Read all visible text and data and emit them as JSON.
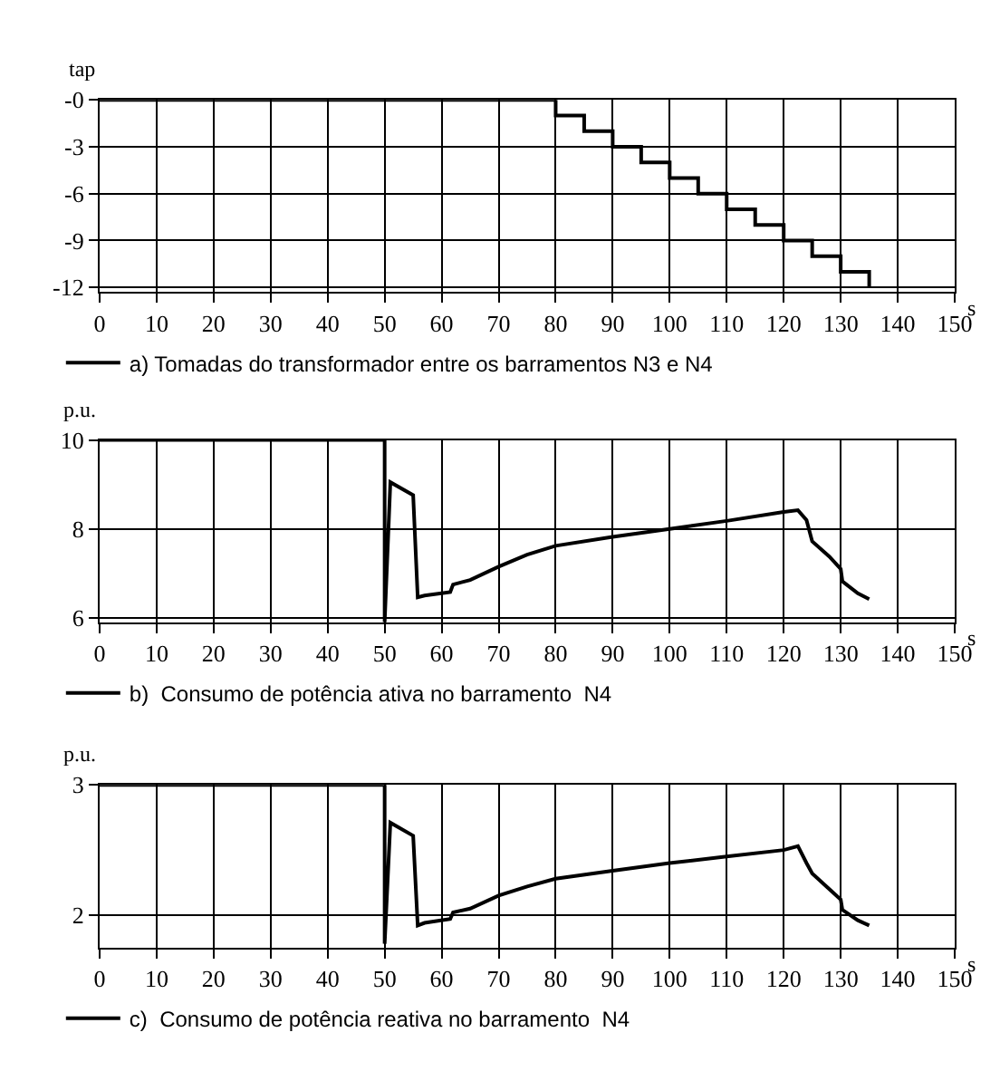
{
  "chart_data": [
    {
      "type": "step",
      "xlabel": "s",
      "ylabel": "tap",
      "xlim": [
        0,
        150
      ],
      "xticks": [
        0,
        10,
        20,
        30,
        40,
        50,
        60,
        70,
        80,
        90,
        100,
        110,
        120,
        130,
        140,
        150
      ],
      "ylim": [
        -12.3,
        0
      ],
      "yticks": [
        {
          "value": 0,
          "label": "-0"
        },
        -3,
        -6,
        -9,
        -12
      ],
      "grid": true,
      "legend": "bottom left",
      "series": [
        {
          "name": "a) Tomadas do transformador entre os barramentos N3 e N4",
          "color": "#000000",
          "x": [
            0,
            80,
            85,
            90,
            95,
            100,
            105,
            110,
            115,
            120,
            125,
            130,
            135
          ],
          "values": [
            0,
            -1,
            -2,
            -3,
            -4,
            -5,
            -6,
            -7,
            -8,
            -9,
            -10,
            -11,
            -12
          ]
        }
      ]
    },
    {
      "type": "line",
      "xlabel": "s",
      "ylabel": "p.u.",
      "xlim": [
        0,
        150
      ],
      "xticks": [
        0,
        10,
        20,
        30,
        40,
        50,
        60,
        70,
        80,
        90,
        100,
        110,
        120,
        130,
        140,
        150
      ],
      "ylim": [
        5.9,
        10
      ],
      "yticks": [
        6,
        8,
        10
      ],
      "grid": true,
      "legend": "bottom left",
      "series": [
        {
          "name": "b)  Consumo de potência ativa no barramento  N4",
          "color": "#000000",
          "x": [
            0,
            50,
            50,
            51,
            55,
            55.8,
            57,
            61.5,
            62,
            65,
            70,
            75,
            80,
            90,
            100,
            110,
            120,
            122.5,
            124,
            125,
            128,
            130,
            130.3,
            133,
            135
          ],
          "values": [
            10,
            10,
            5.9,
            9.05,
            8.76,
            6.46,
            6.5,
            6.58,
            6.75,
            6.85,
            7.15,
            7.42,
            7.62,
            7.82,
            8.0,
            8.18,
            8.38,
            8.42,
            8.2,
            7.72,
            7.38,
            7.1,
            6.82,
            6.55,
            6.42
          ]
        }
      ]
    },
    {
      "type": "line",
      "xlabel": "s",
      "ylabel": "p.u.",
      "xlim": [
        0,
        150
      ],
      "xticks": [
        0,
        10,
        20,
        30,
        40,
        50,
        60,
        70,
        80,
        90,
        100,
        110,
        120,
        130,
        140,
        150
      ],
      "ylim": [
        1.75,
        3
      ],
      "yticks": [
        2,
        3
      ],
      "grid": true,
      "legend": "bottom left",
      "series": [
        {
          "name": "c)  Consumo de potência reativa no barramento  N4",
          "color": "#000000",
          "x": [
            0,
            50,
            50,
            51,
            55,
            55.8,
            57,
            61.5,
            62,
            65,
            70,
            75,
            80,
            90,
            100,
            110,
            120,
            122.5,
            124,
            125,
            128,
            130,
            130.3,
            133,
            135
          ],
          "values": [
            3,
            3,
            1.78,
            2.71,
            2.61,
            1.92,
            1.94,
            1.97,
            2.02,
            2.05,
            2.15,
            2.22,
            2.28,
            2.34,
            2.4,
            2.45,
            2.5,
            2.53,
            2.4,
            2.32,
            2.2,
            2.12,
            2.04,
            1.96,
            1.92
          ]
        }
      ]
    }
  ]
}
